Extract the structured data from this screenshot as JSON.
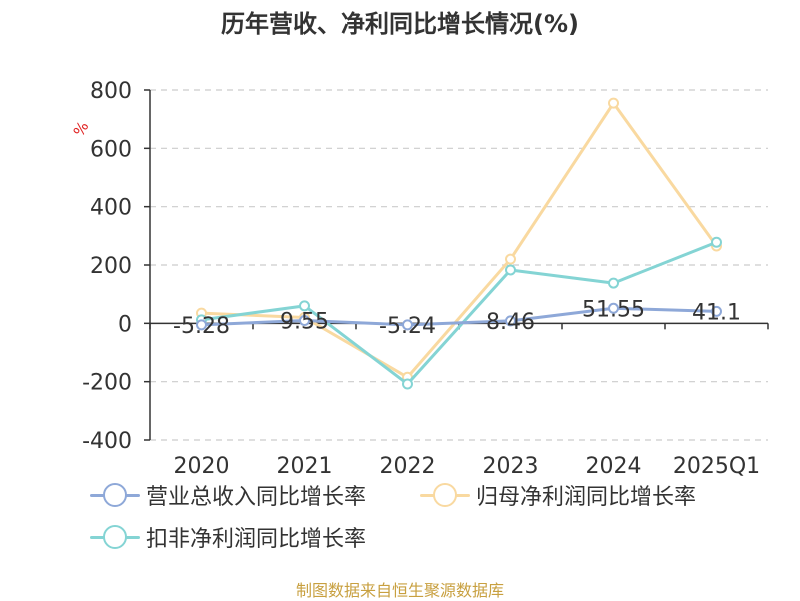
{
  "header": {
    "title": "历年营收、净利同比增长情况(%)"
  },
  "chart_data": {
    "type": "line",
    "categories": [
      "2020",
      "2021",
      "2022",
      "2023",
      "2024",
      "2025Q1"
    ],
    "series": [
      {
        "name": "营业总收入同比增长率",
        "color": "#8ea8d8",
        "values": [
          -5.28,
          9.55,
          -5.24,
          8.46,
          51.55,
          41.1
        ],
        "data_labels": [
          "-5.28",
          "9.55",
          "-5.24",
          "8.46",
          "51.55",
          "41.1"
        ]
      },
      {
        "name": "归母净利润同比增长率",
        "color": "#f9d9a0",
        "values": [
          35,
          20,
          -185,
          220,
          755,
          265
        ]
      },
      {
        "name": "扣非净利润同比增长率",
        "color": "#84d4d4",
        "values": [
          12,
          60,
          -208,
          183,
          138,
          278
        ]
      }
    ],
    "ylim": [
      -400,
      800
    ],
    "yticks": [
      "800",
      "600",
      "400",
      "200",
      "0",
      "-200",
      "-400"
    ],
    "ylabel": "%",
    "grid": true,
    "legend_position": "bottom-left"
  },
  "footer": {
    "source": "制图数据来自恒生聚源数据库"
  }
}
